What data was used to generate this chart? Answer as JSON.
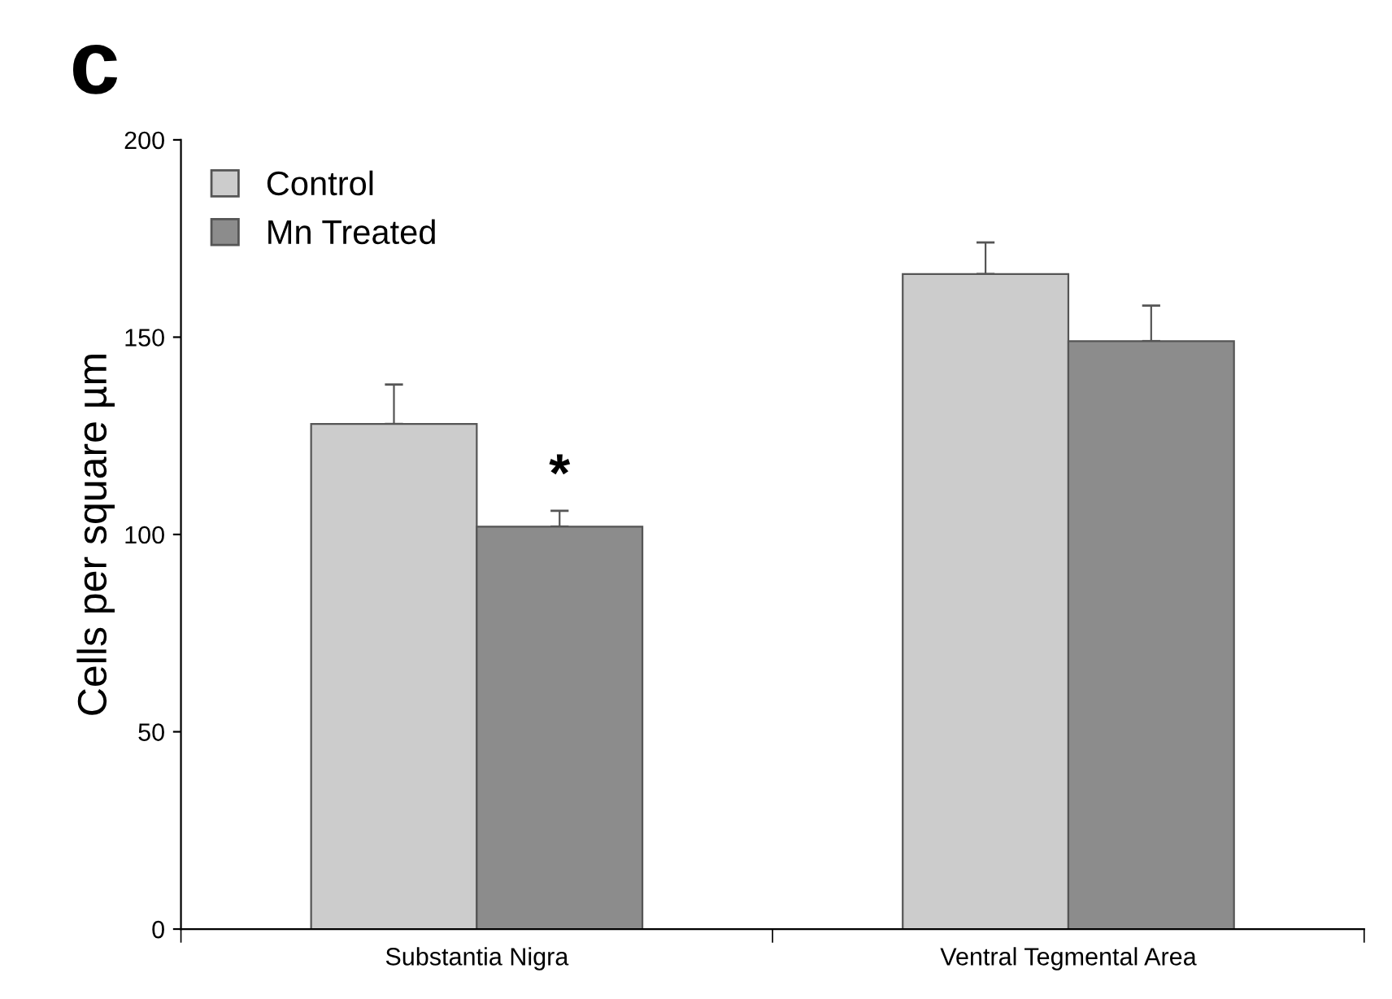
{
  "chart_data": {
    "type": "bar",
    "title": "c",
    "ylabel": "Cells per square µm",
    "categories": [
      "Substantia Nigra",
      "Ventral Tegmental Area"
    ],
    "series": [
      {
        "name": "Control",
        "color": "#cccccc",
        "values": [
          128,
          166
        ],
        "errors": [
          [
            128,
            138
          ],
          [
            166,
            174
          ]
        ]
      },
      {
        "name": "Mn Treated",
        "color": "#8c8c8c",
        "values": [
          102,
          149
        ],
        "errors": [
          [
            102,
            106
          ],
          [
            149,
            158
          ]
        ]
      }
    ],
    "annotations": [
      "*"
    ],
    "ylim": [
      0,
      200
    ],
    "yticks": [
      0,
      50,
      100,
      150,
      200
    ],
    "grid": false,
    "legend": "top left"
  }
}
